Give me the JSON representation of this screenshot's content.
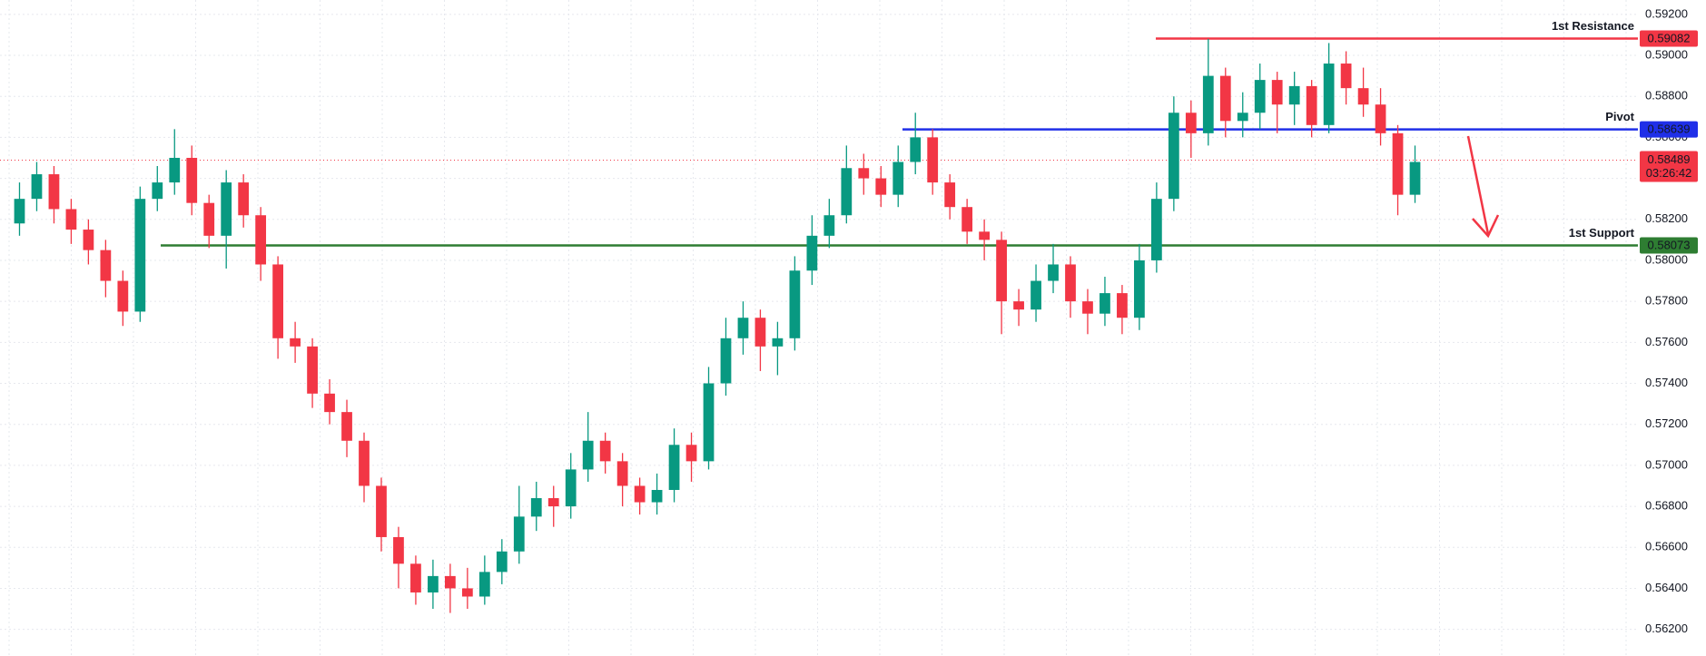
{
  "chart_data": {
    "type": "candlestick",
    "open": [
      0.5818,
      0.583,
      0.5842,
      0.5825,
      0.5815,
      0.5805,
      0.579,
      0.5775,
      0.583,
      0.5838,
      0.585,
      0.5828,
      0.5812,
      0.5838,
      0.5822,
      0.5798,
      0.5762,
      0.5758,
      0.5735,
      0.5726,
      0.5712,
      0.569,
      0.5665,
      0.5652,
      0.5638,
      0.5646,
      0.564,
      0.5636,
      0.5648,
      0.5658,
      0.5675,
      0.5684,
      0.568,
      0.5698,
      0.5712,
      0.5702,
      0.569,
      0.5682,
      0.5688,
      0.571,
      0.5702,
      0.574,
      0.5762,
      0.5772,
      0.5758,
      0.5762,
      0.5795,
      0.5812,
      0.5822,
      0.5845,
      0.584,
      0.5832,
      0.5848,
      0.586,
      0.5838,
      0.5826,
      0.5814,
      0.581,
      0.578,
      0.5776,
      0.579,
      0.5798,
      0.578,
      0.5774,
      0.5784,
      0.5772,
      0.58,
      0.583,
      0.5872,
      0.5862,
      0.589,
      0.5868,
      0.5872,
      0.5888,
      0.5876,
      0.5885,
      0.5866,
      0.5896,
      0.5884,
      0.5876,
      0.5862,
      0.5832
    ],
    "high": [
      0.5838,
      0.5848,
      0.5846,
      0.583,
      0.582,
      0.581,
      0.5795,
      0.5836,
      0.5846,
      0.5864,
      0.5856,
      0.5832,
      0.5844,
      0.5842,
      0.5826,
      0.5802,
      0.577,
      0.5762,
      0.5742,
      0.5732,
      0.5716,
      0.5694,
      0.567,
      0.5656,
      0.5654,
      0.5652,
      0.565,
      0.5656,
      0.5664,
      0.569,
      0.5692,
      0.569,
      0.5706,
      0.5726,
      0.5716,
      0.5706,
      0.5694,
      0.5696,
      0.5718,
      0.5716,
      0.5748,
      0.5772,
      0.578,
      0.5776,
      0.577,
      0.5802,
      0.5822,
      0.583,
      0.5856,
      0.5852,
      0.5846,
      0.5856,
      0.5872,
      0.5864,
      0.5842,
      0.583,
      0.582,
      0.5814,
      0.5786,
      0.5798,
      0.5808,
      0.5802,
      0.5786,
      0.5792,
      0.5788,
      0.5808,
      0.5838,
      0.588,
      0.5878,
      0.5908,
      0.5894,
      0.5882,
      0.5896,
      0.5892,
      0.5892,
      0.5888,
      0.5906,
      0.5902,
      0.5894,
      0.5884,
      0.5866,
      0.5856
    ],
    "low": [
      0.5812,
      0.5824,
      0.5818,
      0.5808,
      0.5798,
      0.5782,
      0.5768,
      0.577,
      0.5824,
      0.5832,
      0.5822,
      0.5806,
      0.5796,
      0.5816,
      0.579,
      0.5752,
      0.575,
      0.5728,
      0.572,
      0.5704,
      0.5682,
      0.5658,
      0.564,
      0.5632,
      0.563,
      0.5628,
      0.563,
      0.5632,
      0.5642,
      0.5652,
      0.5668,
      0.567,
      0.5674,
      0.5692,
      0.5696,
      0.568,
      0.5676,
      0.5676,
      0.5682,
      0.5692,
      0.5698,
      0.5734,
      0.5754,
      0.5746,
      0.5744,
      0.5756,
      0.5788,
      0.5806,
      0.5818,
      0.5832,
      0.5826,
      0.5826,
      0.5842,
      0.5832,
      0.582,
      0.5808,
      0.58,
      0.5764,
      0.5768,
      0.577,
      0.5784,
      0.5772,
      0.5764,
      0.5768,
      0.5764,
      0.5766,
      0.5794,
      0.5824,
      0.585,
      0.5856,
      0.586,
      0.586,
      0.5864,
      0.5862,
      0.5866,
      0.586,
      0.5862,
      0.5876,
      0.587,
      0.5856,
      0.5822,
      0.5828
    ],
    "close": [
      0.583,
      0.5842,
      0.5825,
      0.5815,
      0.5805,
      0.579,
      0.5775,
      0.583,
      0.5838,
      0.585,
      0.5828,
      0.5812,
      0.5838,
      0.5822,
      0.5798,
      0.5762,
      0.5758,
      0.5735,
      0.5726,
      0.5712,
      0.569,
      0.5665,
      0.5652,
      0.5638,
      0.5646,
      0.564,
      0.5636,
      0.5648,
      0.5658,
      0.5675,
      0.5684,
      0.568,
      0.5698,
      0.5712,
      0.5702,
      0.569,
      0.5682,
      0.5688,
      0.571,
      0.5702,
      0.574,
      0.5762,
      0.5772,
      0.5758,
      0.5762,
      0.5795,
      0.5812,
      0.5822,
      0.5845,
      0.584,
      0.5832,
      0.5848,
      0.586,
      0.5838,
      0.5826,
      0.5814,
      0.581,
      0.578,
      0.5776,
      0.579,
      0.5798,
      0.578,
      0.5774,
      0.5784,
      0.5772,
      0.58,
      0.583,
      0.5872,
      0.5862,
      0.589,
      0.5868,
      0.5872,
      0.5888,
      0.5876,
      0.5885,
      0.5866,
      0.5896,
      0.5884,
      0.5876,
      0.5862,
      0.5832,
      0.5848
    ],
    "up_color": "#089981",
    "down_color": "#f23645",
    "ylim": [
      0.5607,
      0.5927
    ],
    "yticks": [
      {
        "value": 0.562,
        "label": "0.56200"
      },
      {
        "value": 0.564,
        "label": "0.56400"
      },
      {
        "value": 0.566,
        "label": "0.56600"
      },
      {
        "value": 0.568,
        "label": "0.56800"
      },
      {
        "value": 0.57,
        "label": "0.57000"
      },
      {
        "value": 0.572,
        "label": "0.57200"
      },
      {
        "value": 0.574,
        "label": "0.57400"
      },
      {
        "value": 0.576,
        "label": "0.57600"
      },
      {
        "value": 0.578,
        "label": "0.57800"
      },
      {
        "value": 0.58,
        "label": "0.58000"
      },
      {
        "value": 0.582,
        "label": "0.58200"
      },
      {
        "value": 0.584,
        "label": "0.58400"
      },
      {
        "value": 0.586,
        "label": "0.58600"
      },
      {
        "value": 0.588,
        "label": "0.58800"
      },
      {
        "value": 0.59,
        "label": "0.59000"
      },
      {
        "value": 0.592,
        "label": "0.59200"
      }
    ],
    "grid": true,
    "levels": [
      {
        "name": "1st Resistance",
        "value": 0.59082,
        "label": "0.59082",
        "color": "#f23645"
      },
      {
        "name": "Pivot",
        "value": 0.58639,
        "label": "0.58639",
        "color": "#1f2fe8"
      },
      {
        "name": "1st Support",
        "value": 0.58073,
        "label": "0.58073",
        "color": "#2e7d32"
      }
    ],
    "last_price": {
      "value": 0.58489,
      "label": "0.58489",
      "countdown": "03:26:42",
      "color": "#f23645"
    }
  }
}
